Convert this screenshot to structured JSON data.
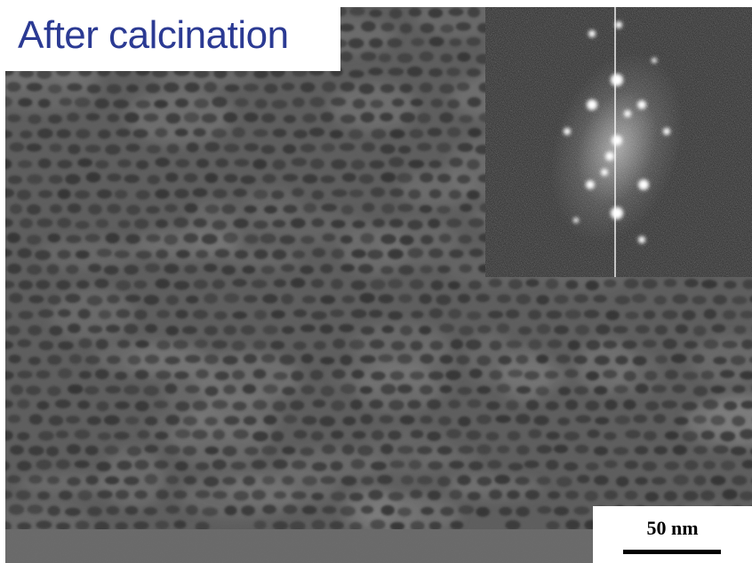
{
  "figure": {
    "title": "After calcination",
    "title_color": "#2b3a93",
    "scale_bar": {
      "label": "50 nm",
      "color": "#000000"
    },
    "micrograph": {
      "description_icon": "sem-mesoporous-film",
      "background_color": "#5d5d5d",
      "pore_color": "#2e2e2e",
      "wall_color": "#8a8a8a",
      "substrate_color": "#6a6a6a"
    },
    "inset": {
      "description_icon": "fft-diffraction-pattern",
      "background_color": "#222222",
      "spot_color": "#ffffff"
    }
  }
}
